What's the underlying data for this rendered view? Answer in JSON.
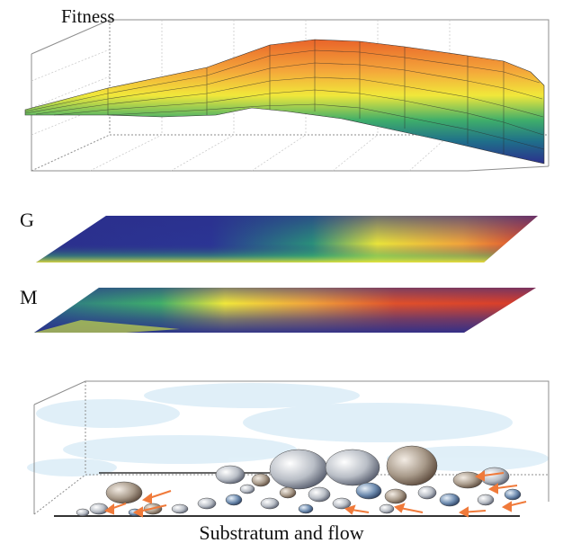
{
  "labels": {
    "fitness": "Fitness",
    "g": "G",
    "m": "M",
    "caption": "Substratum and flow"
  },
  "colors": {
    "low": "#2b2f8c",
    "mid_low": "#1f9a7a",
    "mid": "#f1e83a",
    "high": "#f08a2a",
    "peak": "#d83a2a",
    "water": "#d9ecf7",
    "flow_arrow": "#f07a3a",
    "grid": "#9a9a9a"
  },
  "icons": [
    "flow-arrow-icon",
    "pebble-icon"
  ]
}
